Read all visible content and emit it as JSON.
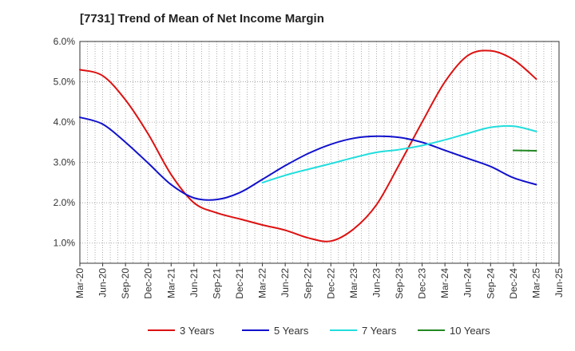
{
  "chart_data": {
    "type": "line",
    "title": "[7731]  Trend of Mean of Net Income Margin",
    "xlabel": "",
    "ylabel": "",
    "x_ticks": [
      "Mar-20",
      "Jun-20",
      "Sep-20",
      "Dec-20",
      "Mar-21",
      "Jun-21",
      "Sep-21",
      "Dec-21",
      "Mar-22",
      "Jun-22",
      "Sep-22",
      "Dec-22",
      "Mar-23",
      "Jun-23",
      "Sep-23",
      "Dec-23",
      "Mar-24",
      "Jun-24",
      "Sep-24",
      "Dec-24",
      "Mar-25",
      "Jun-25"
    ],
    "y_ticks": [
      "1.0%",
      "2.0%",
      "3.0%",
      "4.0%",
      "5.0%",
      "6.0%"
    ],
    "ylim": [
      0.5,
      6.0
    ],
    "grid": true,
    "legend_position": "bottom",
    "series": [
      {
        "name": "3 Years",
        "color": "#dd1111",
        "x": [
          "Mar-20",
          "Jun-20",
          "Sep-20",
          "Dec-20",
          "Mar-21",
          "Jun-21",
          "Sep-21",
          "Dec-21",
          "Mar-22",
          "Jun-22",
          "Sep-22",
          "Dec-22",
          "Mar-23",
          "Jun-23",
          "Sep-23",
          "Dec-23",
          "Mar-24",
          "Jun-24",
          "Sep-24",
          "Dec-24",
          "Mar-25"
        ],
        "values": [
          5.3,
          5.15,
          4.55,
          3.7,
          2.7,
          2.0,
          1.75,
          1.6,
          1.45,
          1.32,
          1.13,
          1.05,
          1.35,
          1.95,
          2.95,
          4.0,
          5.0,
          5.65,
          5.77,
          5.55,
          5.07
        ]
      },
      {
        "name": "5 Years",
        "color": "#1111cc",
        "x": [
          "Mar-20",
          "Jun-20",
          "Sep-20",
          "Dec-20",
          "Mar-21",
          "Jun-21",
          "Sep-21",
          "Dec-21",
          "Mar-22",
          "Jun-22",
          "Sep-22",
          "Dec-22",
          "Mar-23",
          "Jun-23",
          "Sep-23",
          "Dec-23",
          "Mar-24",
          "Jun-24",
          "Sep-24",
          "Dec-24",
          "Mar-25"
        ],
        "values": [
          4.12,
          3.95,
          3.5,
          2.98,
          2.45,
          2.12,
          2.08,
          2.25,
          2.58,
          2.92,
          3.22,
          3.45,
          3.6,
          3.65,
          3.62,
          3.5,
          3.3,
          3.1,
          2.9,
          2.62,
          2.45
        ]
      },
      {
        "name": "7 Years",
        "color": "#22dddd",
        "x": [
          "Mar-22",
          "Jun-22",
          "Sep-22",
          "Dec-22",
          "Mar-23",
          "Jun-23",
          "Sep-23",
          "Dec-23",
          "Mar-24",
          "Jun-24",
          "Sep-24",
          "Dec-24",
          "Mar-25"
        ],
        "values": [
          2.5,
          2.68,
          2.83,
          2.97,
          3.12,
          3.25,
          3.32,
          3.42,
          3.56,
          3.72,
          3.87,
          3.9,
          3.77
        ]
      },
      {
        "name": "10 Years",
        "color": "#228822",
        "x": [
          "Dec-24",
          "Mar-25"
        ],
        "values": [
          3.3,
          3.29
        ]
      }
    ]
  }
}
